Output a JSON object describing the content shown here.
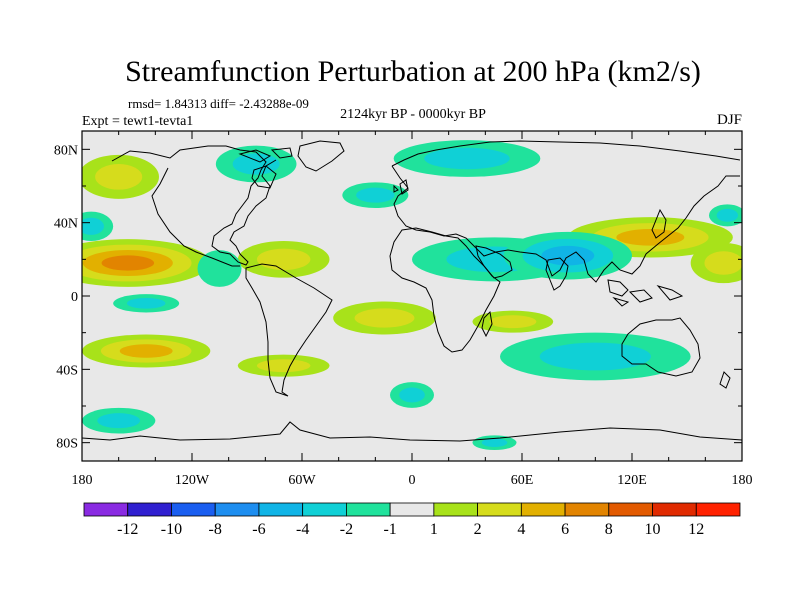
{
  "title": "Streamfunction Perturbation at 200 hPa (km2/s)",
  "stats": "rmsd= 1.84313 diff= -2.43288e-09",
  "experiment": "Expt = tewt1-tevta1",
  "period": "2124kyr BP - 0000kyr BP",
  "season": "DJF",
  "map": {
    "projection": "cylindrical equidistant",
    "lon_range": [
      -180,
      180
    ],
    "lat_range": [
      -90,
      90
    ],
    "lat_labels": [
      {
        "text": "80N",
        "lat": 80
      },
      {
        "text": "40N",
        "lat": 40
      },
      {
        "text": "0",
        "lat": 0
      },
      {
        "text": "40S",
        "lat": -40
      },
      {
        "text": "80S",
        "lat": -80
      }
    ],
    "lon_labels": [
      {
        "text": "180",
        "lon": -180
      },
      {
        "text": "120W",
        "lon": -120
      },
      {
        "text": "60W",
        "lon": -60
      },
      {
        "text": "0",
        "lon": 0
      },
      {
        "text": "60E",
        "lon": 60
      },
      {
        "text": "120E",
        "lon": 120
      },
      {
        "text": "180",
        "lon": 180
      }
    ],
    "background_color": "#e8e8e8",
    "anomalies": [
      {
        "lon": -155,
        "lat": 18,
        "rlon": 45,
        "rlat": 13,
        "peak": 7
      },
      {
        "lon": -70,
        "lat": 20,
        "rlon": 25,
        "rlat": 10,
        "peak": 3
      },
      {
        "lon": -160,
        "lat": 65,
        "rlon": 22,
        "rlat": 12,
        "peak": 2
      },
      {
        "lon": -145,
        "lat": -30,
        "rlon": 35,
        "rlat": 9,
        "peak": 4
      },
      {
        "lon": -70,
        "lat": -38,
        "rlon": 25,
        "rlat": 6,
        "peak": 2
      },
      {
        "lon": -15,
        "lat": -12,
        "rlon": 28,
        "rlat": 9,
        "peak": 3
      },
      {
        "lon": 55,
        "lat": -14,
        "rlon": 22,
        "rlat": 6,
        "peak": 3
      },
      {
        "lon": 130,
        "lat": 32,
        "rlon": 45,
        "rlat": 11,
        "peak": 4
      },
      {
        "lon": 170,
        "lat": 18,
        "rlon": 18,
        "rlat": 11,
        "peak": 3
      },
      {
        "lon": -145,
        "lat": -4,
        "rlon": 18,
        "rlat": 5,
        "peak": -3
      },
      {
        "lon": -175,
        "lat": 38,
        "rlon": 12,
        "rlat": 8,
        "peak": -2
      },
      {
        "lon": 30,
        "lat": 75,
        "rlon": 40,
        "rlat": 10,
        "peak": -2
      },
      {
        "lon": -85,
        "lat": 72,
        "rlon": 22,
        "rlat": 10,
        "peak": -2
      },
      {
        "lon": -20,
        "lat": 55,
        "rlon": 18,
        "rlat": 7,
        "peak": -2
      },
      {
        "lon": 45,
        "lat": 20,
        "rlon": 45,
        "rlat": 12,
        "peak": -3
      },
      {
        "lon": 85,
        "lat": 22,
        "rlon": 35,
        "rlat": 13,
        "peak": -5
      },
      {
        "lon": 100,
        "lat": -33,
        "rlon": 52,
        "rlat": 13,
        "peak": -3
      },
      {
        "lon": -160,
        "lat": -68,
        "rlon": 20,
        "rlat": 7,
        "peak": -2
      },
      {
        "lon": 0,
        "lat": -54,
        "rlon": 12,
        "rlat": 7,
        "peak": -2
      },
      {
        "lon": 45,
        "lat": -80,
        "rlon": 12,
        "rlat": 4,
        "peak": -2
      },
      {
        "lon": 172,
        "lat": 44,
        "rlon": 10,
        "rlat": 6,
        "peak": -2
      },
      {
        "lon": -105,
        "lat": 15,
        "rlon": 12,
        "rlat": 10,
        "peak": -1
      }
    ]
  },
  "colorbar": {
    "labels": [
      "-12",
      "-10",
      "-8",
      "-6",
      "-4",
      "-2",
      "-1",
      "1",
      "2",
      "4",
      "6",
      "8",
      "10",
      "12"
    ],
    "levels": [
      -12,
      -10,
      -8,
      -6,
      -4,
      -2,
      -1,
      1,
      2,
      4,
      6,
      8,
      10,
      12
    ],
    "colors": [
      "#8a2be2",
      "#3020d0",
      "#1a5ef0",
      "#1e8ef0",
      "#10b4e6",
      "#10d0d6",
      "#20e29c",
      "#e8e8e8",
      "#a8e21a",
      "#d6dc1c",
      "#e2b000",
      "#e28400",
      "#e25a00",
      "#e02a00",
      "#ff2200"
    ]
  }
}
